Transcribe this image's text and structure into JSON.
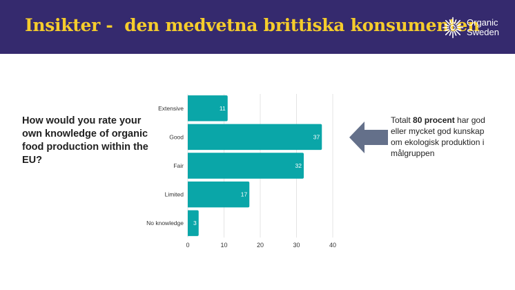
{
  "header": {
    "title": "Insikter -  den medvetna brittiska konsumenten",
    "background": "#352a6e",
    "title_color": "#f5cc2c"
  },
  "logo": {
    "line1": "Organic",
    "line2": "Sweden",
    "icon": "sunburst-logo-icon"
  },
  "question": "How would you rate your own knowledge of organic food production within the EU?",
  "note": {
    "prefix": "Totalt ",
    "highlight": "80 procent",
    "suffix": " har god eller mycket god kunskap om ekologisk produktion i målgruppen",
    "arrow_icon": "left-arrow-icon",
    "arrow_color": "#64708a"
  },
  "chart_data": {
    "type": "bar",
    "orientation": "horizontal",
    "categories": [
      "Extensive",
      "Good",
      "Fair",
      "Limited",
      "No knowledge"
    ],
    "values": [
      11,
      37,
      32,
      17,
      3
    ],
    "xticks": [
      0,
      10,
      20,
      30,
      40
    ],
    "xlim": [
      0,
      40
    ],
    "grid": "vertical",
    "bar_color": "#0aa6a8",
    "data_labels": true
  }
}
